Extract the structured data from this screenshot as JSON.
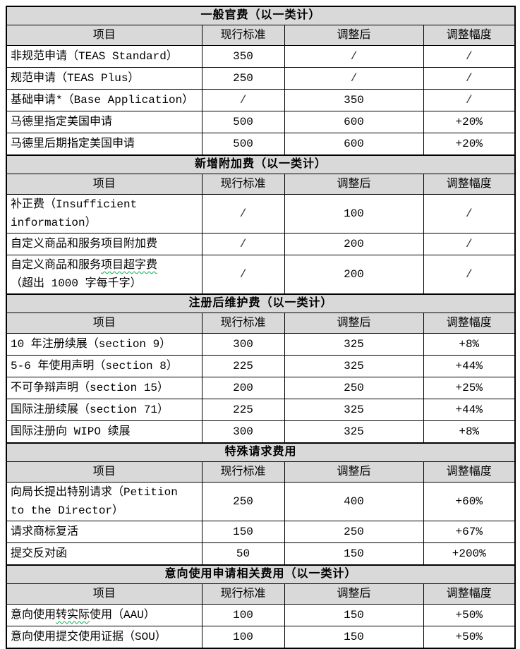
{
  "colors": {
    "header_bg": "#d9d9d9",
    "border": "#000000",
    "squiggle_green": "#00b050",
    "slash": "#333333",
    "text": "#000000"
  },
  "document": {
    "columns": [
      "项目",
      "现行标准",
      "调整后",
      "调整幅度"
    ],
    "sections": [
      {
        "title": "一般官费（以一类计）",
        "rows": [
          {
            "item": [
              [
                {
                  "text": "非规范申请（TEAS Standard）"
                }
              ]
            ],
            "current": "350",
            "adjusted": "/",
            "change": "/"
          },
          {
            "item": [
              [
                {
                  "text": "规范申请（TEAS Plus）"
                }
              ]
            ],
            "current": "250",
            "adjusted": "/",
            "change": "/"
          },
          {
            "item": [
              [
                {
                  "text": "基础申请*（Base Application）"
                }
              ]
            ],
            "current": "/",
            "adjusted": "350",
            "change": "/"
          },
          {
            "item": [
              [
                {
                  "text": "马德里指定美国申请"
                }
              ]
            ],
            "current": "500",
            "adjusted": "600",
            "change": "+20%"
          },
          {
            "item": [
              [
                {
                  "text": "马德里后期指定美国申请"
                }
              ]
            ],
            "current": "500",
            "adjusted": "600",
            "change": "+20%"
          }
        ]
      },
      {
        "title": "新增附加费（以一类计）",
        "rows": [
          {
            "item": [
              [
                {
                  "text": "补正费（Insufficient"
                }
              ],
              [
                {
                  "text": "information）"
                }
              ]
            ],
            "current": "/",
            "adjusted": "100",
            "change": "/"
          },
          {
            "item": [
              [
                {
                  "text": "自定义商品和服务项目附加费"
                }
              ]
            ],
            "current": "/",
            "adjusted": "200",
            "change": "/"
          },
          {
            "item": [
              [
                {
                  "text": "自定义商品和服务"
                },
                {
                  "text": "项目超字费",
                  "underline": true
                }
              ],
              [
                {
                  "text": "（超出 1000 字每千字）"
                }
              ]
            ],
            "current": "/",
            "adjusted": "200",
            "change": "/"
          }
        ]
      },
      {
        "title": "注册后维护费（以一类计）",
        "rows": [
          {
            "item": [
              [
                {
                  "text": "10 年注册续展（section 9）"
                }
              ]
            ],
            "current": "300",
            "adjusted": "325",
            "change": "+8%"
          },
          {
            "item": [
              [
                {
                  "text": "5-6 年使用声明（section 8）"
                }
              ]
            ],
            "current": "225",
            "adjusted": "325",
            "change": "+44%"
          },
          {
            "item": [
              [
                {
                  "text": "不可争辩声明（section 15）"
                }
              ]
            ],
            "current": "200",
            "adjusted": "250",
            "change": "+25%"
          },
          {
            "item": [
              [
                {
                  "text": "国际注册续展（section 71）"
                }
              ]
            ],
            "current": "225",
            "adjusted": "325",
            "change": "+44%"
          },
          {
            "item": [
              [
                {
                  "text": "国际注册向 WIPO 续展"
                }
              ]
            ],
            "current": "300",
            "adjusted": "325",
            "change": "+8%"
          }
        ]
      },
      {
        "title": "特殊请求费用",
        "rows": [
          {
            "item": [
              [
                {
                  "text": "向局长提出特别请求（Petition"
                }
              ],
              [
                {
                  "text": "to the Director）"
                }
              ]
            ],
            "current": "250",
            "adjusted": "400",
            "change": "+60%"
          },
          {
            "item": [
              [
                {
                  "text": "请求商标复活"
                }
              ]
            ],
            "current": "150",
            "adjusted": "250",
            "change": "+67%"
          },
          {
            "item": [
              [
                {
                  "text": "提交反对函"
                }
              ]
            ],
            "current": "50",
            "adjusted": "150",
            "change": "+200%"
          }
        ]
      },
      {
        "title": "意向使用申请相关费用（以一类计）",
        "rows": [
          {
            "item": [
              [
                {
                  "text": "意向使用"
                },
                {
                  "text": "转实际",
                  "underline": true
                },
                {
                  "text": "使用（AAU）"
                }
              ]
            ],
            "current": "100",
            "adjusted": "150",
            "change": "+50%"
          },
          {
            "item": [
              [
                {
                  "text": "意向使用提交使用证据（SOU）"
                }
              ]
            ],
            "current": "100",
            "adjusted": "150",
            "change": "+50%"
          }
        ]
      }
    ]
  }
}
